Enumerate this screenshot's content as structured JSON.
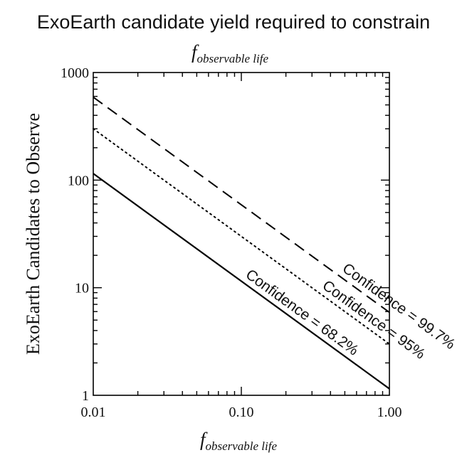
{
  "title": "ExoEarth candidate yield required to constrain",
  "chart_data": {
    "type": "line",
    "subtitle": {
      "base": "f",
      "subscript": "observable life"
    },
    "xlabel": {
      "base": "f",
      "subscript": "observable life"
    },
    "ylabel": "ExoEarth Candidates to Observe",
    "xscale": "log",
    "yscale": "log",
    "xlim": [
      0.01,
      1.0
    ],
    "ylim": [
      1,
      1000
    ],
    "xticks": [
      {
        "value": 0.01,
        "label": "0.01"
      },
      {
        "value": 0.1,
        "label": "0.10"
      },
      {
        "value": 1.0,
        "label": "1.00"
      }
    ],
    "yticks": [
      {
        "value": 1,
        "label": "1"
      },
      {
        "value": 10,
        "label": "10"
      },
      {
        "value": 100,
        "label": "100"
      },
      {
        "value": 1000,
        "label": "1000"
      }
    ],
    "grid": false,
    "legend": "none",
    "series": [
      {
        "name": "Confidence = 68.2%",
        "style": "solid",
        "x": [
          0.01,
          1.0
        ],
        "y": [
          115,
          1.15
        ],
        "label_at": 0.1
      },
      {
        "name": "Confidence = 95%",
        "style": "dotted",
        "x": [
          0.01,
          1.0
        ],
        "y": [
          300,
          3.0
        ],
        "label_at": 0.33
      },
      {
        "name": "Confidence = 99.7%",
        "style": "dashed",
        "x": [
          0.01,
          1.0
        ],
        "y": [
          590,
          5.9
        ],
        "label_at": 0.45
      }
    ]
  }
}
